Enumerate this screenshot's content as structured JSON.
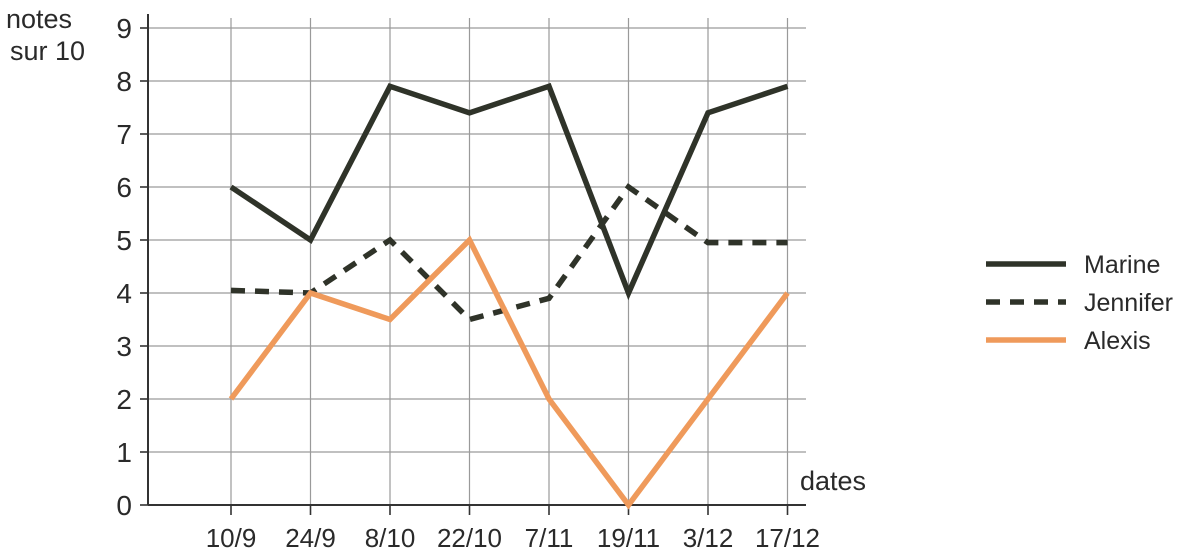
{
  "chart_data": {
    "type": "line",
    "ylabel_line1": "notes",
    "ylabel_line2": "sur 10",
    "xlabel": "dates",
    "categories": [
      "10/9",
      "24/9",
      "8/10",
      "22/10",
      "7/11",
      "19/11",
      "3/12",
      "17/12"
    ],
    "ylim": [
      0,
      9
    ],
    "yticks": [
      0,
      1,
      2,
      3,
      4,
      5,
      6,
      7,
      8,
      9
    ],
    "grid": true,
    "legend_position": "right",
    "series": [
      {
        "name": "Marine",
        "color": "#2f3329",
        "style": "solid",
        "values": [
          6,
          5,
          7.9,
          7.4,
          7.9,
          4,
          7.4,
          7.9
        ]
      },
      {
        "name": "Jennifer",
        "color": "#2f3329",
        "style": "dashed",
        "values": [
          4.05,
          4,
          5,
          3.5,
          3.9,
          6,
          4.95,
          4.95
        ]
      },
      {
        "name": "Alexis",
        "color": "#ef9a5b",
        "style": "solid",
        "values": [
          2,
          4,
          3.5,
          5,
          2,
          0,
          2,
          4
        ]
      }
    ]
  }
}
